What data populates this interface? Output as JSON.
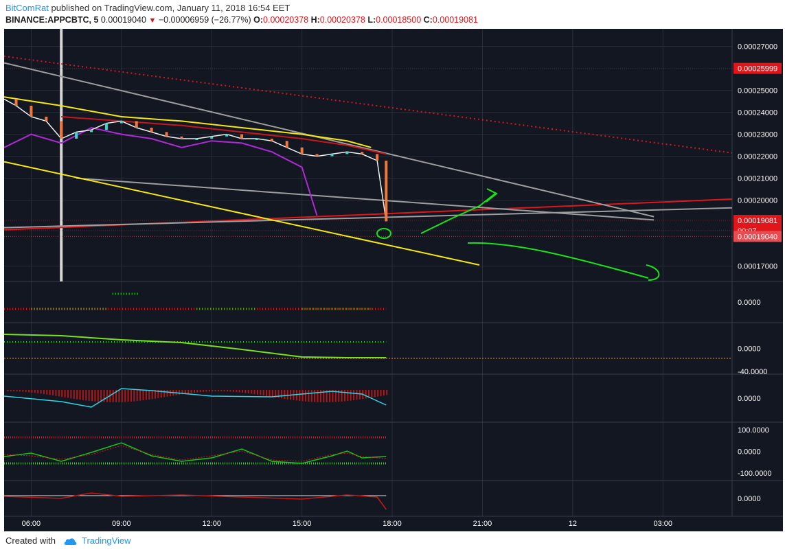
{
  "header": {
    "user": "BitComRat",
    "published": "published on TradingView.com, January 11, 2018 16:54 EET"
  },
  "ticker": {
    "symbol": "BINANCE:APPCBTC, 5",
    "price": "0.00019040",
    "change": "−0.00006959 (−26.77%)",
    "o_label": "O:",
    "o": "0.00020378",
    "h_label": "H:",
    "h": "0.00020378",
    "l_label": "L:",
    "l": "0.00018500",
    "c_label": "C:",
    "c": "0.00019081"
  },
  "footer": {
    "created": "Created with",
    "brand": "TradingView"
  },
  "colors": {
    "bg": "#131722",
    "grid": "#2a2e39",
    "text": "#ffffff",
    "red": "#e0161b",
    "yellow": "#f5e90e",
    "green": "#18e418",
    "gray": "#9e9e9e",
    "purple": "#b02ad8",
    "cyan": "#2ed6e6"
  },
  "chart_data": {
    "type": "line",
    "title": "BINANCE:APPCBTC, 5",
    "price_axis": {
      "ticks": [
        "0.00027000",
        "0.00025000",
        "0.00024000",
        "0.00023000",
        "0.00022000",
        "0.00021000",
        "0.00020000",
        "0.00017000"
      ],
      "tick_values": [
        0.00027,
        0.00025,
        0.00024,
        0.00023,
        0.00022,
        0.00021,
        0.0002,
        0.00017
      ],
      "ylim": [
        0.000163,
        0.000278
      ],
      "badges": [
        {
          "text": "0.00025999",
          "value": 0.00025999,
          "color": "#e0161b"
        },
        {
          "text": "0.00019081",
          "value": 0.00019081,
          "color": "#e0161b"
        },
        {
          "text": "00:07",
          "value": 0.0001862,
          "color": "#e0161b"
        },
        {
          "text": "0.00019040",
          "value": 0.0001835,
          "color": "#e84c50"
        }
      ]
    },
    "time_axis": {
      "labels": [
        "06:00",
        "09:00",
        "12:00",
        "15:00",
        "18:00",
        "21:00",
        "12",
        "03:00"
      ],
      "hours": [
        6,
        9,
        12,
        15,
        18,
        21,
        24,
        27
      ],
      "xlim": [
        5.1,
        29.3
      ]
    },
    "price_series": {
      "name": "APPCBTC",
      "hours": [
        5.1,
        5.5,
        6.0,
        6.5,
        7.0,
        7.5,
        8.0,
        8.5,
        9.0,
        9.5,
        10.0,
        10.5,
        11.0,
        11.5,
        12.0,
        12.5,
        13.0,
        13.5,
        14.0,
        14.5,
        15.0,
        15.5,
        16.0,
        16.5,
        17.0,
        17.5,
        17.8
      ],
      "values": [
        0.000246,
        0.000243,
        0.000238,
        0.000236,
        0.000228,
        0.000231,
        0.000232,
        0.000235,
        0.000236,
        0.000233,
        0.000231,
        0.000229,
        0.000228,
        0.000228,
        0.000229,
        0.00023,
        0.000228,
        0.000228,
        0.000227,
        0.000224,
        0.000221,
        0.00022,
        0.000221,
        0.000222,
        0.000221,
        0.000218,
        0.0001904
      ]
    },
    "ma_series": [
      {
        "color": "#f5e90e",
        "hours": [
          5.1,
          7.0,
          9.0,
          11.0,
          13.0,
          15.0,
          16.5,
          17.3
        ],
        "values": [
          0.000247,
          0.000243,
          0.000238,
          0.000236,
          0.000233,
          0.00023,
          0.000227,
          0.000224
        ]
      },
      {
        "color": "#c7171c",
        "hours": [
          7.0,
          9.0,
          11.0,
          13.0,
          15.0,
          16.5,
          17.8
        ],
        "values": [
          0.000238,
          0.000236,
          0.000234,
          0.000231,
          0.000228,
          0.000225,
          0.000221
        ]
      },
      {
        "color": "#b02ad8",
        "hours": [
          5.1,
          6.0,
          7.0,
          8.0,
          9.0,
          10.0,
          11.0,
          12.0,
          13.0,
          14.0,
          15.0,
          15.5
        ],
        "values": [
          0.000224,
          0.00023,
          0.000226,
          0.000233,
          0.00023,
          0.000228,
          0.000224,
          0.000227,
          0.000226,
          0.000222,
          0.000215,
          0.000193
        ]
      }
    ],
    "trendlines": [
      {
        "color": "#e0161b",
        "dash": "dots",
        "h1": 5.1,
        "v1": 0.0002655,
        "h2": 29.3,
        "v2": 0.0002215
      },
      {
        "color": "#e0161b",
        "h1": 5.1,
        "v1": 0.0001865,
        "h2": 29.3,
        "v2": 0.0002005
      },
      {
        "color": "#9e9e9e",
        "h1": 5.1,
        "v1": 0.0002625,
        "h2": 26.7,
        "v2": 0.0001925
      },
      {
        "color": "#9e9e9e",
        "h1": 5.1,
        "v1": 0.0001875,
        "h2": 29.3,
        "v2": 0.0001965
      },
      {
        "color": "#9e9e9e",
        "h1": 7.5,
        "v1": 0.00021,
        "h2": 26.7,
        "v2": 0.000191
      },
      {
        "color": "#f5e90e",
        "h1": 5.1,
        "v1": 0.0002175,
        "h2": 20.9,
        "v2": 0.0001705
      }
    ],
    "panes": [
      {
        "ticks": [
          "0.0000"
        ],
        "tick_values": [
          0
        ],
        "ylim": [
          -2,
          2
        ]
      },
      {
        "ticks": [
          "0.0000",
          "-40.0000"
        ],
        "tick_values": [
          0,
          -40
        ],
        "ylim": [
          -45,
          45
        ]
      },
      {
        "ticks": [
          "0.0000"
        ],
        "tick_values": [
          0
        ],
        "ylim": [
          -2,
          2
        ]
      },
      {
        "ticks": [
          "100.0000",
          "0.0000",
          "-100.0000"
        ],
        "tick_values": [
          100,
          0,
          -100
        ],
        "ylim": [
          -135,
          135
        ]
      },
      {
        "ticks": [
          "0.0000"
        ],
        "tick_values": [
          0
        ],
        "ylim": [
          -2,
          2
        ]
      }
    ]
  }
}
